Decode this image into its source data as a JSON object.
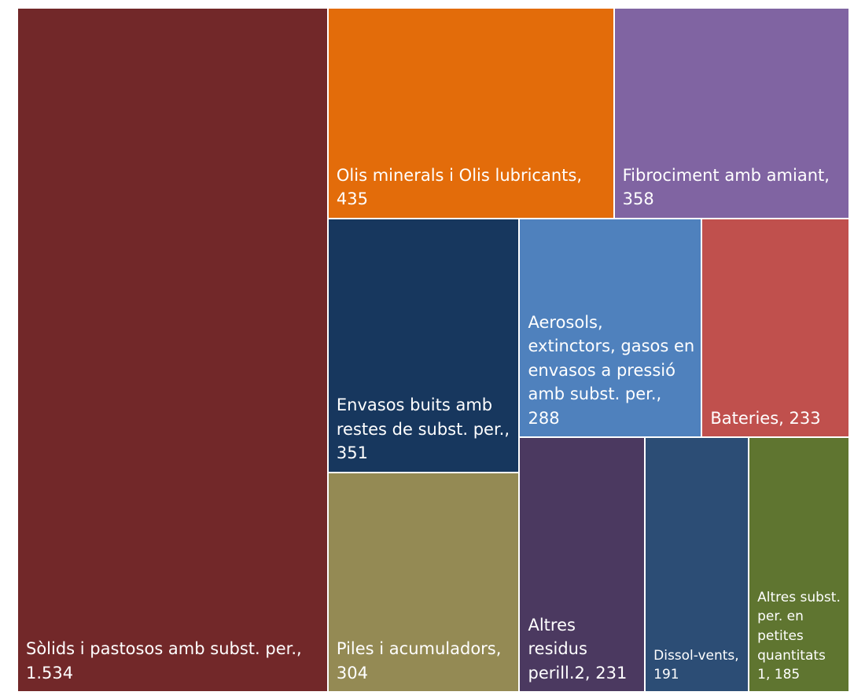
{
  "chart_data": {
    "type": "treemap",
    "categories": [
      "Sòlids i pastosos amb subst. per.,",
      "Olis minerals i Olis lubricants,",
      "Fibrociment amb amiant,",
      "Envasos buits amb restes de subst. per.,",
      "Piles i acumuladors,",
      "Aerosols, extinctors, gasos en envasos a pressió amb subst. per.,",
      "Bateries,",
      "Altres residus perill.2,",
      "Dissol-vents,",
      "Altres subst. per. en petites quantitats 1,"
    ],
    "values": [
      1534,
      435,
      358,
      351,
      304,
      288,
      233,
      231,
      191,
      185
    ],
    "value_labels": [
      "1.534",
      "435",
      "358",
      "351",
      "304",
      "288",
      "233",
      "231",
      "191",
      "185"
    ],
    "colors": [
      "#722829",
      "#e36c0a",
      "#8064a2",
      "#17375e",
      "#948a54",
      "#4f81bd",
      "#c0504d",
      "#4b3960",
      "#2c4d75",
      "#5f7530"
    ]
  }
}
